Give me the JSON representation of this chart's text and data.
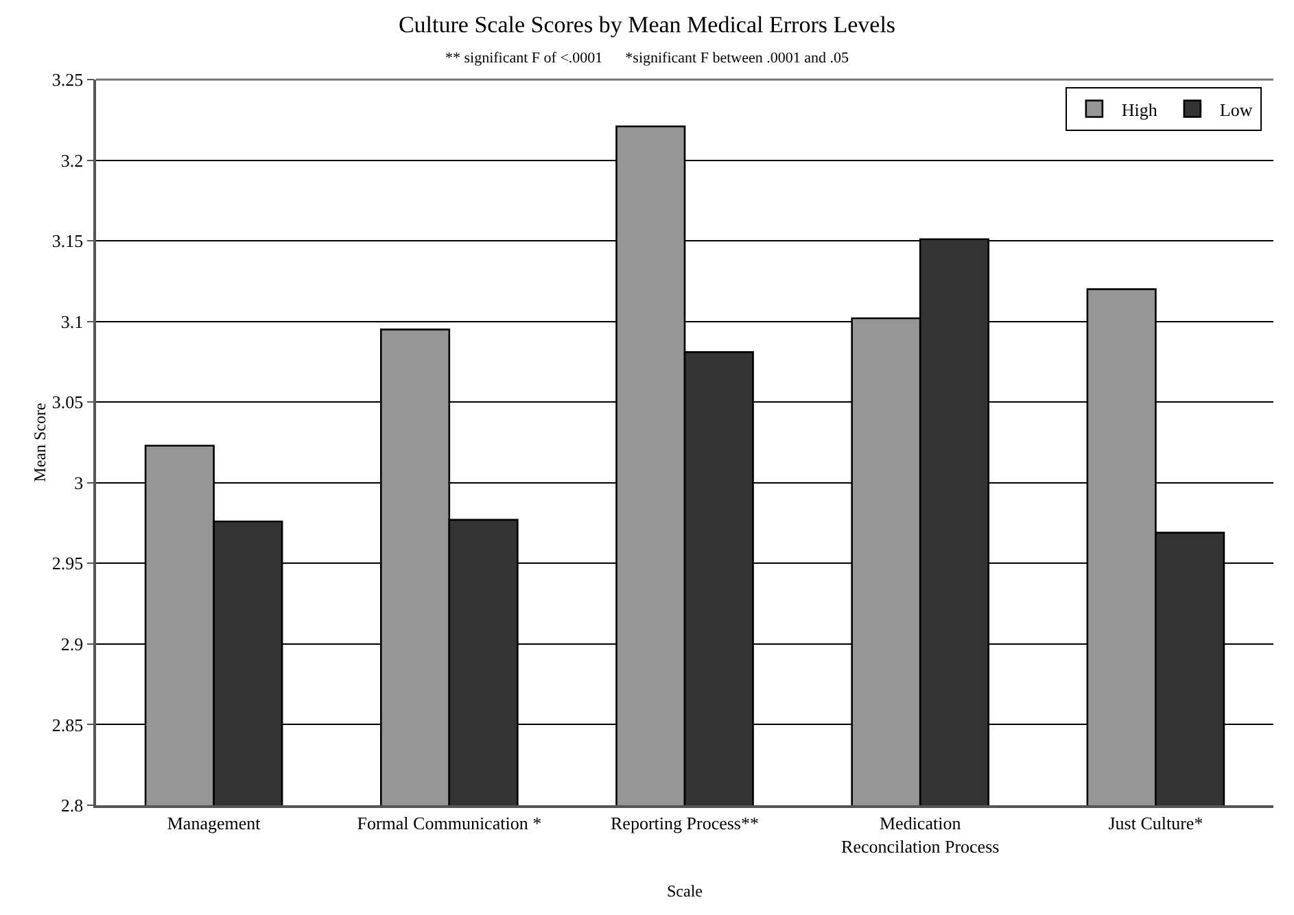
{
  "chart_data": {
    "type": "bar",
    "title": "Culture Scale Scores by Mean Medical Errors Levels",
    "subtitle": "** significant F of <.0001      *significant F between .0001 and .05",
    "xlabel": "Scale",
    "ylabel": "Mean Score",
    "categories": [
      "Management",
      "Formal Communication *",
      "Reporting Process**",
      "Medication Reconcilation Process",
      "Just Culture*"
    ],
    "series": [
      {
        "name": "High",
        "color": "#969696",
        "values": [
          3.023,
          3.095,
          3.221,
          3.102,
          3.12
        ]
      },
      {
        "name": "Low",
        "color": "#333333",
        "values": [
          2.976,
          2.977,
          3.081,
          3.151,
          2.969
        ]
      }
    ],
    "ylim": [
      2.8,
      3.25
    ],
    "yticks": [
      2.8,
      2.85,
      2.9,
      2.95,
      3,
      3.05,
      3.1,
      3.15,
      3.2,
      3.25
    ],
    "grid": "y",
    "legend": "top right"
  }
}
